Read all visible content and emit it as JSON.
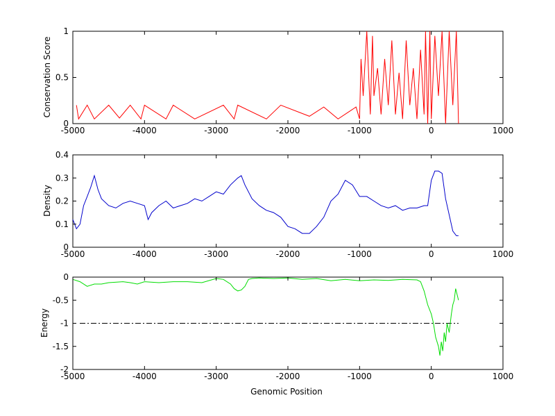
{
  "chart_data": [
    {
      "type": "line",
      "title": "",
      "xlabel": "",
      "ylabel": "Conservation Score",
      "xlim": [
        -5000,
        1000
      ],
      "ylim": [
        0,
        1
      ],
      "xticks": [
        "-5000",
        "-4000",
        "-3000",
        "-2000",
        "-1000",
        "0",
        "1000"
      ],
      "yticks": [
        "0",
        "0.5",
        "1"
      ],
      "color": "#ff0000",
      "series": [
        {
          "x": [
            -4950,
            -4920,
            -4800,
            -4700,
            -4500,
            -4350,
            -4200,
            -4050,
            -4000,
            -3700,
            -3600,
            -3300,
            -2900,
            -2750,
            -2700,
            -2300,
            -2100,
            -1700,
            -1500,
            -1300,
            -1050,
            -1000,
            -980,
            -950,
            -900,
            -850,
            -820,
            -800,
            -750,
            -700,
            -650,
            -600,
            -550,
            -500,
            -450,
            -400,
            -350,
            -300,
            -250,
            -200,
            -150,
            -100,
            -80,
            -50,
            -20,
            0,
            50,
            100,
            150,
            200,
            250,
            300,
            350,
            380
          ],
          "y": [
            0.2,
            0.05,
            0.2,
            0.05,
            0.2,
            0.06,
            0.2,
            0.05,
            0.2,
            0.05,
            0.2,
            0.05,
            0.2,
            0.05,
            0.2,
            0.05,
            0.2,
            0.08,
            0.18,
            0.05,
            0.18,
            0.05,
            0.7,
            0.3,
            1.0,
            0.1,
            0.95,
            0.3,
            0.6,
            0.1,
            0.7,
            0.2,
            0.9,
            0.1,
            0.55,
            0.05,
            0.9,
            0.2,
            0.6,
            0.05,
            0.8,
            0.1,
            1.0,
            0.0,
            1.0,
            0.05,
            0.95,
            0.3,
            1.0,
            0.0,
            1.0,
            0.2,
            1.0,
            0.0
          ]
        }
      ]
    },
    {
      "type": "line",
      "title": "",
      "xlabel": "",
      "ylabel": "Density",
      "xlim": [
        -5000,
        1000
      ],
      "ylim": [
        0,
        0.4
      ],
      "xticks": [
        "-5000",
        "-4000",
        "-3000",
        "-2000",
        "-1000",
        "0",
        "1000"
      ],
      "yticks": [
        "0",
        "0.1",
        "0.2",
        "0.3",
        "0.4"
      ],
      "color": "#0000cc",
      "series": [
        {
          "x": [
            -5000,
            -4950,
            -4900,
            -4850,
            -4800,
            -4750,
            -4700,
            -4650,
            -4600,
            -4500,
            -4400,
            -4300,
            -4200,
            -4100,
            -4000,
            -3950,
            -3900,
            -3800,
            -3700,
            -3600,
            -3500,
            -3400,
            -3300,
            -3200,
            -3100,
            -3000,
            -2900,
            -2800,
            -2700,
            -2650,
            -2600,
            -2500,
            -2400,
            -2300,
            -2200,
            -2100,
            -2000,
            -1900,
            -1800,
            -1700,
            -1600,
            -1500,
            -1400,
            -1300,
            -1200,
            -1100,
            -1000,
            -900,
            -800,
            -700,
            -600,
            -500,
            -400,
            -300,
            -200,
            -100,
            -50,
            0,
            50,
            100,
            150,
            200,
            250,
            300,
            350,
            380
          ],
          "y": [
            0.12,
            0.08,
            0.1,
            0.18,
            0.22,
            0.26,
            0.31,
            0.25,
            0.21,
            0.18,
            0.17,
            0.19,
            0.2,
            0.19,
            0.18,
            0.12,
            0.15,
            0.18,
            0.2,
            0.17,
            0.18,
            0.19,
            0.21,
            0.2,
            0.22,
            0.24,
            0.23,
            0.27,
            0.3,
            0.31,
            0.27,
            0.21,
            0.18,
            0.16,
            0.15,
            0.13,
            0.09,
            0.08,
            0.06,
            0.06,
            0.09,
            0.13,
            0.2,
            0.23,
            0.29,
            0.27,
            0.22,
            0.22,
            0.2,
            0.18,
            0.17,
            0.18,
            0.16,
            0.17,
            0.17,
            0.18,
            0.18,
            0.29,
            0.33,
            0.33,
            0.32,
            0.21,
            0.14,
            0.07,
            0.05,
            0.05
          ]
        }
      ]
    },
    {
      "type": "line",
      "title": "",
      "xlabel": "Genomic Position",
      "ylabel": "Energy",
      "xlim": [
        -5000,
        1000
      ],
      "ylim": [
        -2,
        0
      ],
      "xticks": [
        "-5000",
        "-4000",
        "-3000",
        "-2000",
        "-1000",
        "0",
        "1000"
      ],
      "yticks": [
        "0",
        "-0.5",
        "-1",
        "-1.5",
        "-2"
      ],
      "color": "#00dd00",
      "threshold": -1,
      "series": [
        {
          "x": [
            -5000,
            -4900,
            -4800,
            -4700,
            -4600,
            -4500,
            -4300,
            -4200,
            -4100,
            -4000,
            -3800,
            -3600,
            -3400,
            -3200,
            -3000,
            -2900,
            -2800,
            -2750,
            -2700,
            -2650,
            -2600,
            -2550,
            -2500,
            -2400,
            -2200,
            -2000,
            -1800,
            -1600,
            -1400,
            -1200,
            -1000,
            -800,
            -600,
            -400,
            -200,
            -150,
            -100,
            -50,
            0,
            30,
            60,
            100,
            120,
            140,
            160,
            180,
            200,
            220,
            250,
            280,
            300,
            320,
            340,
            380
          ],
          "y": [
            -0.05,
            -0.1,
            -0.2,
            -0.15,
            -0.15,
            -0.12,
            -0.1,
            -0.12,
            -0.15,
            -0.1,
            -0.12,
            -0.1,
            -0.1,
            -0.12,
            -0.03,
            -0.05,
            -0.15,
            -0.25,
            -0.3,
            -0.28,
            -0.2,
            -0.05,
            -0.03,
            -0.02,
            -0.03,
            -0.02,
            -0.05,
            -0.03,
            -0.08,
            -0.05,
            -0.08,
            -0.06,
            -0.07,
            -0.05,
            -0.06,
            -0.1,
            -0.3,
            -0.6,
            -0.8,
            -1.0,
            -1.3,
            -1.5,
            -1.7,
            -1.4,
            -1.6,
            -1.2,
            -1.4,
            -1.0,
            -1.2,
            -0.8,
            -0.6,
            -0.5,
            -0.25,
            -0.5
          ]
        }
      ]
    }
  ]
}
